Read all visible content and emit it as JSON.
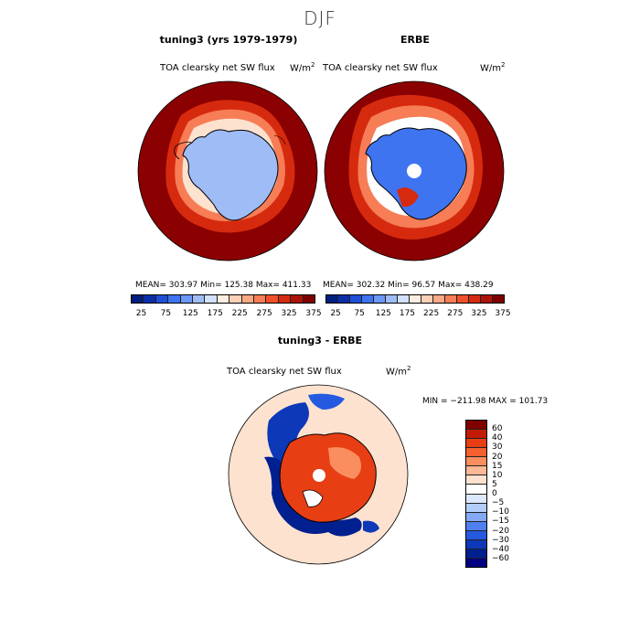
{
  "page_title": "DJF",
  "panels": [
    {
      "title": "tuning3 (yrs 1979-1979)",
      "variable": "TOA clearsky net SW flux",
      "units_base": "W/m",
      "units_exp": "2",
      "stats": "MEAN= 303.97   Min= 125.38   Max= 411.33"
    },
    {
      "title": "ERBE",
      "variable": "TOA clearsky net SW flux",
      "units_base": "W/m",
      "units_exp": "2",
      "stats": "MEAN= 302.32   Min=  96.57   Max= 438.29"
    }
  ],
  "diff_panel": {
    "title": "tuning3 - ERBE",
    "variable": "TOA clearsky net SW flux",
    "units_base": "W/m",
    "units_exp": "2",
    "stats": "MIN = −211.98 MAX = 101.73"
  },
  "colorbar_abs": {
    "colors": [
      "#001f7f",
      "#0b2fa8",
      "#1f4fd8",
      "#3f74f0",
      "#6d98f5",
      "#9fbcf7",
      "#d2e1fb",
      "#ffeee2",
      "#fdd0b5",
      "#fba985",
      "#f67d56",
      "#ef4f29",
      "#d62a0f",
      "#ac1408",
      "#800000"
    ],
    "tick_labels": [
      "25",
      "75",
      "125",
      "175",
      "225",
      "275",
      "325",
      "375"
    ]
  },
  "colorbar_diff": {
    "colors": [
      "#800000",
      "#c21a05",
      "#e83e14",
      "#f65f30",
      "#fb8e5e",
      "#fdb895",
      "#fde2cf",
      "#ffffff",
      "#dce8fd",
      "#b3cdfa",
      "#84a9f5",
      "#5080f0",
      "#2459e0",
      "#0d38b8",
      "#002090",
      "#000080"
    ],
    "tick_labels": [
      "60",
      "40",
      "30",
      "20",
      "15",
      "10",
      "5",
      "0",
      "−5",
      "−10",
      "−15",
      "−20",
      "−30",
      "−40",
      "−60"
    ]
  }
}
